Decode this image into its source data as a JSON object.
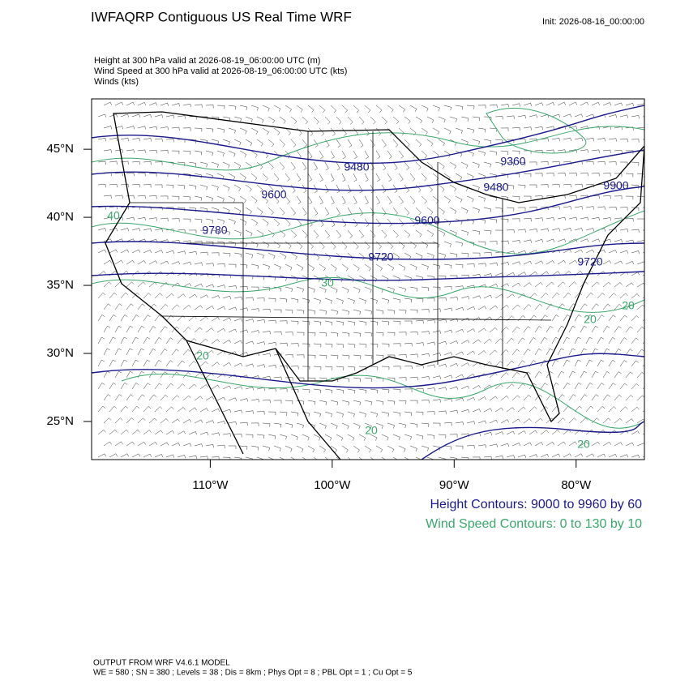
{
  "header": {
    "title": "IWFAQRP Contiguous US Real Time WRF",
    "init": "Init: 2026-08-16_00:00:00"
  },
  "fields": [
    "Height at 300 hPa valid at 2026-08-19_06:00:00 UTC   (m)",
    "Wind Speed at 300 hPa valid at 2026-08-19_06:00:00 UTC   (kts)",
    "Winds   (kts)"
  ],
  "map": {
    "lon_range": [
      -119.73,
      -74.4
    ],
    "lat_range": [
      22.2,
      48.7
    ],
    "lon_ticks": [
      {
        "value": -110,
        "label": "110°W"
      },
      {
        "value": -100,
        "label": "100°W"
      },
      {
        "value": -90,
        "label": "90°W"
      },
      {
        "value": -80,
        "label": "80°W"
      }
    ],
    "lat_ticks": [
      {
        "value": 45,
        "label": "45°N"
      },
      {
        "value": 40,
        "label": "40°N"
      },
      {
        "value": 35,
        "label": "35°N"
      },
      {
        "value": 30,
        "label": "30°N"
      },
      {
        "value": 25,
        "label": "25°N"
      }
    ],
    "height_labels": [
      "9480",
      "9360",
      "9600",
      "9480",
      "9900",
      "9780",
      "9600",
      "9720",
      "9720"
    ],
    "wind_labels": [
      "40",
      "30",
      "20",
      "20",
      "20",
      "20",
      "20"
    ]
  },
  "legend": [
    "Height Contours: 9000 to 9960 by 60",
    "Wind Speed Contours: 0 to 130 by 10"
  ],
  "footer": [
    "OUTPUT FROM WRF V4.6.1 MODEL",
    "WE = 580 ; SN = 380 ; Levels = 38 ; Dis = 8km ; Phys Opt = 8 ; PBL Opt = 1 ; Cu Opt = 5"
  ]
}
